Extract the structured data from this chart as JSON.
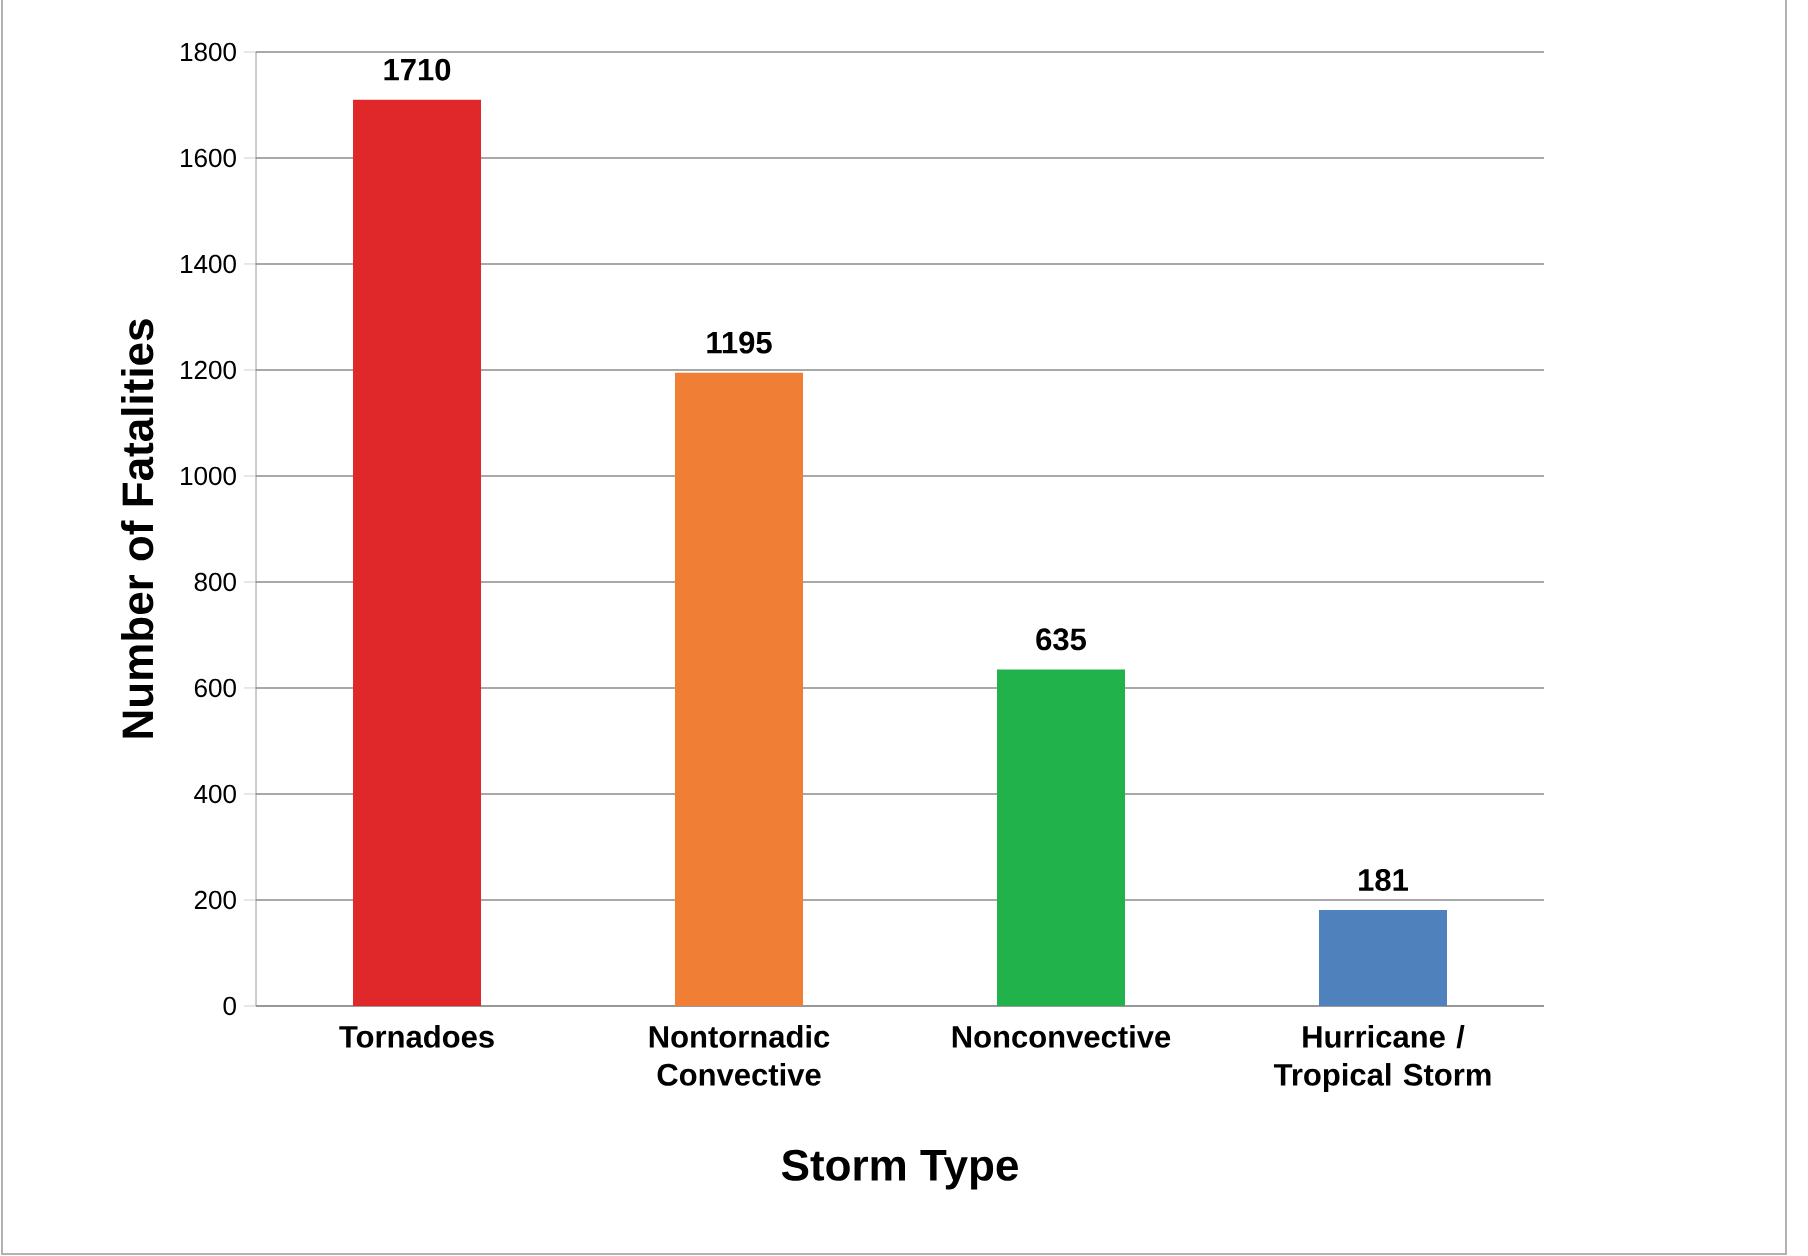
{
  "chart_data": {
    "type": "bar",
    "xlabel": "Storm Type",
    "ylabel": "Number of Fatalities",
    "categories": [
      "Tornadoes",
      "Nontornadic Convective",
      "Nonconvective",
      "Hurricane / Tropical Storm"
    ],
    "values": [
      1710,
      1195,
      635,
      181
    ],
    "colors": [
      "#e0282a",
      "#f07f35",
      "#22b24c",
      "#4f81bd"
    ],
    "ylim": [
      0,
      1800
    ],
    "yticks": [
      0,
      200,
      400,
      600,
      800,
      1000,
      1200,
      1400,
      1600,
      1800
    ],
    "grid": "y",
    "data_labels": true
  }
}
